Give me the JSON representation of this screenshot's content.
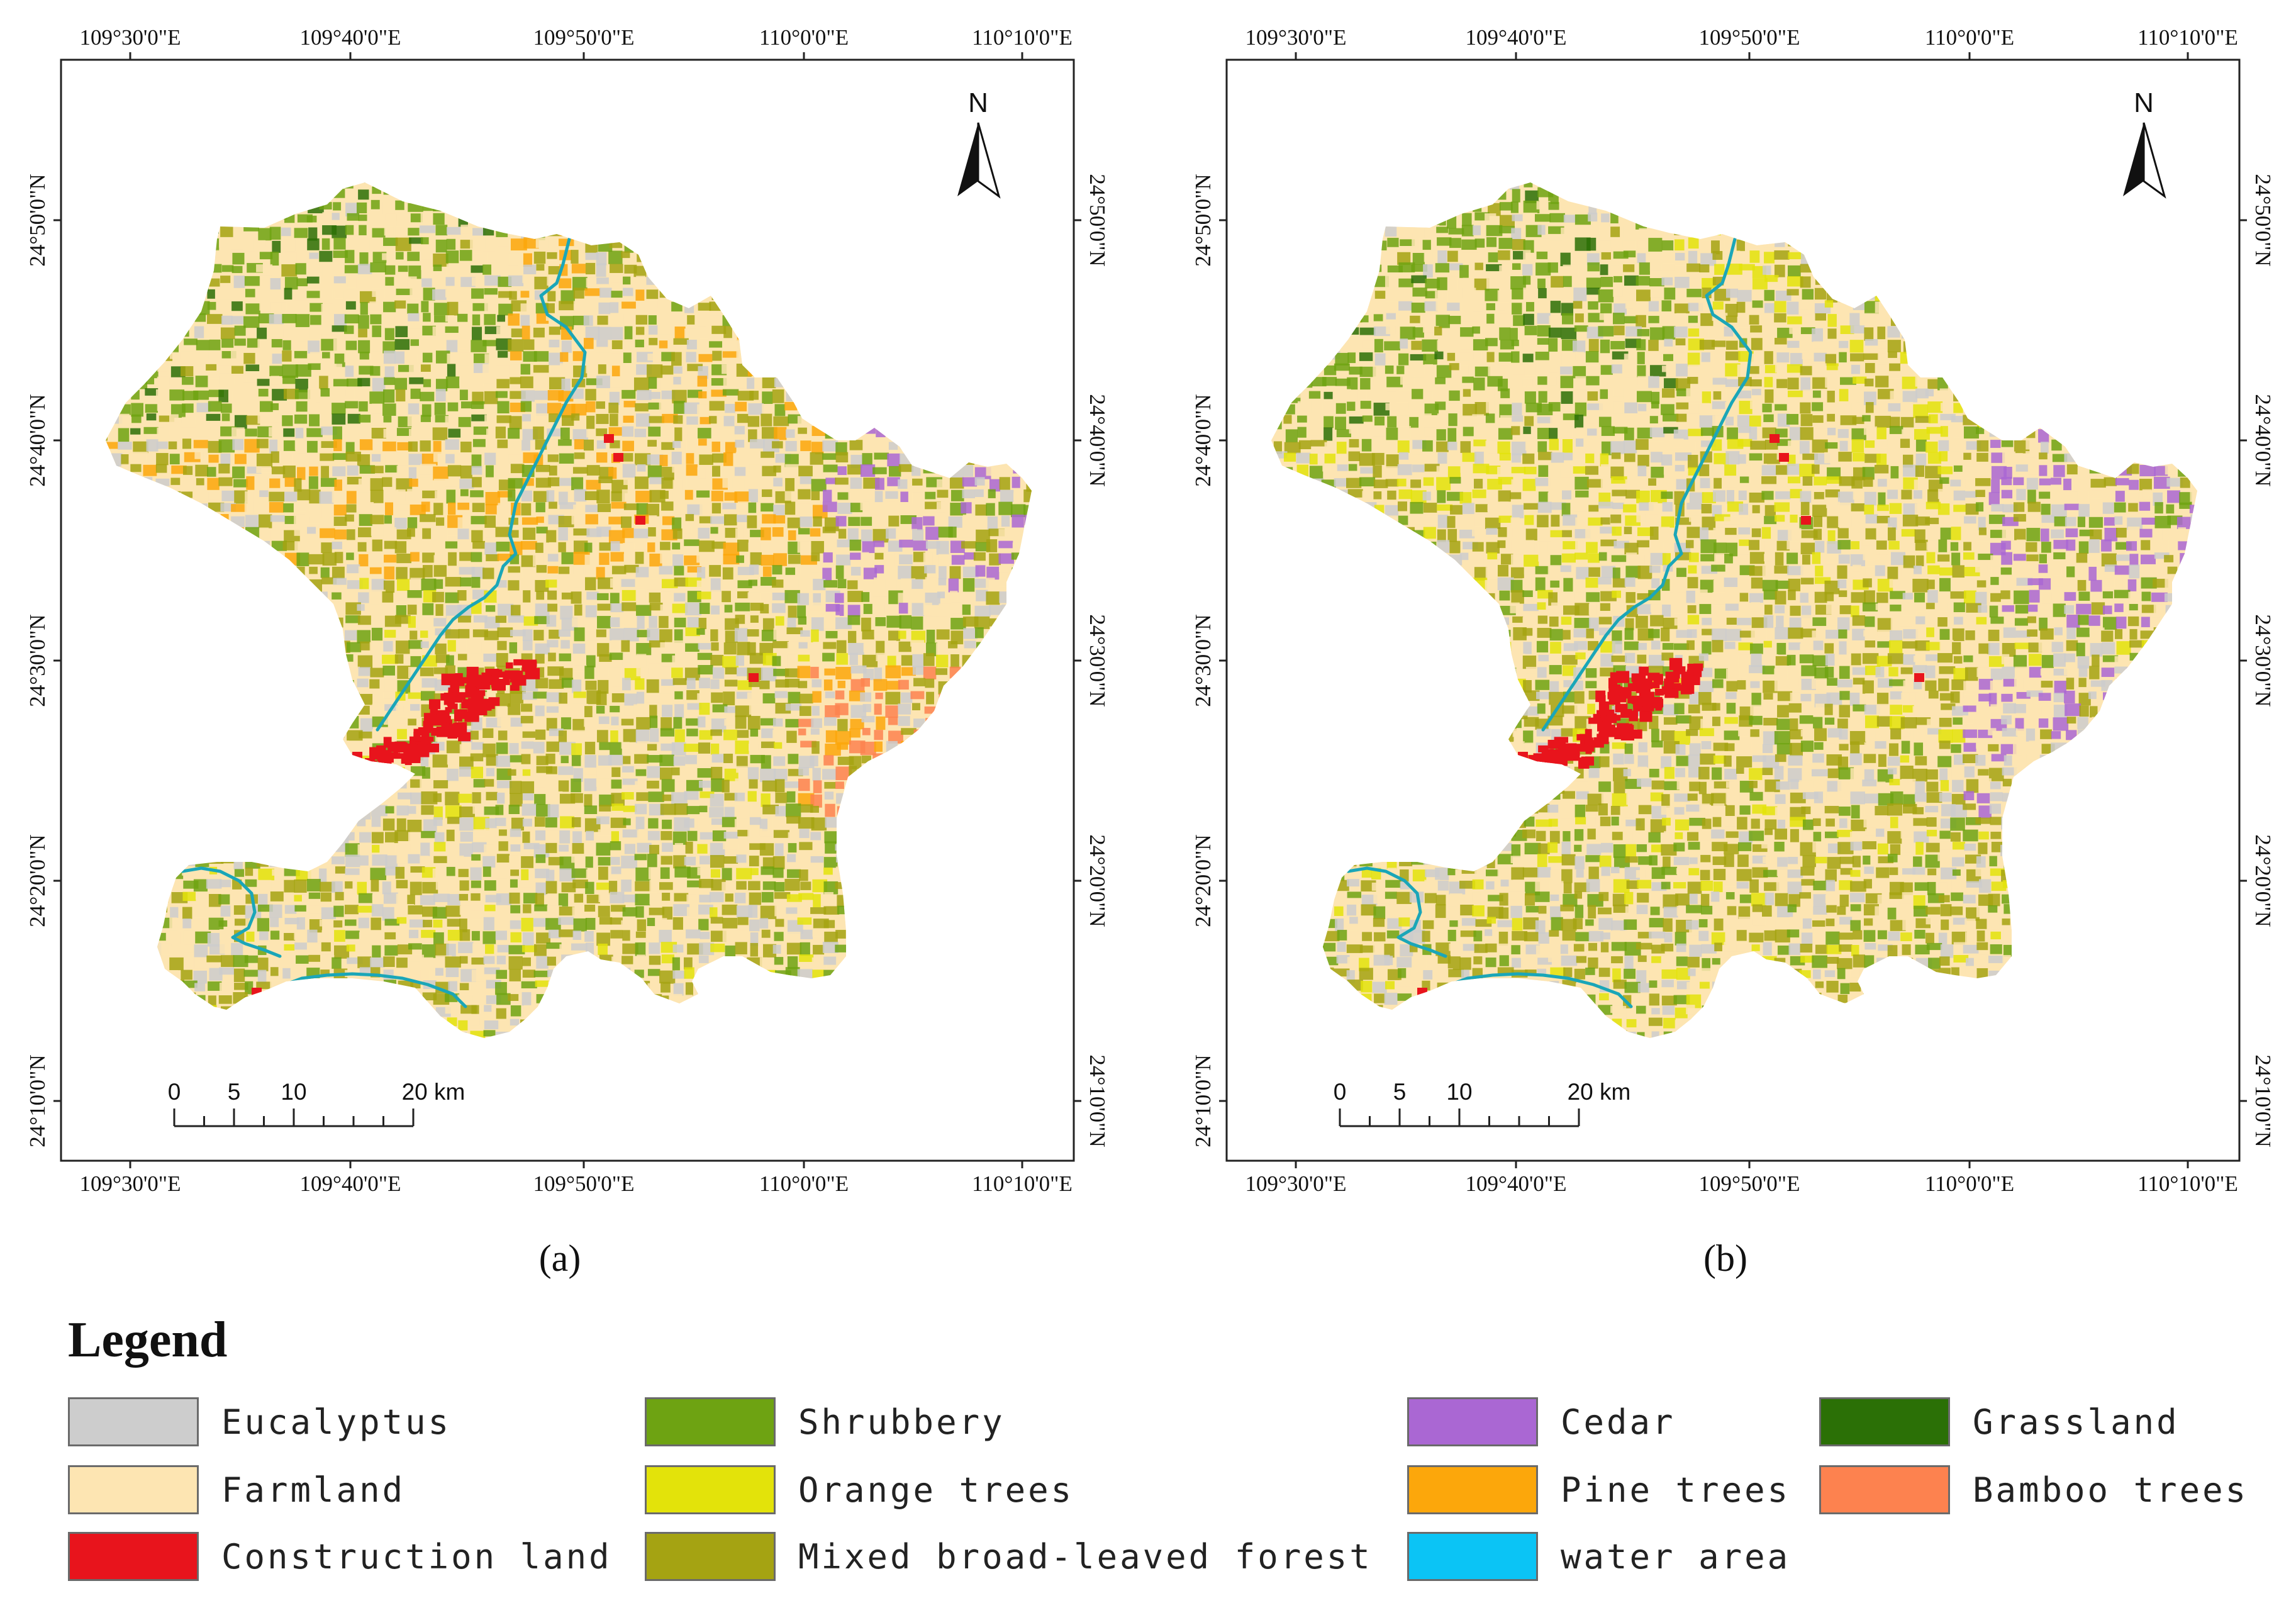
{
  "maps": [
    {
      "id": "a",
      "caption": "(a)",
      "lon_labels": [
        "109°30'0\"E",
        "109°40'0\"E",
        "109°50'0\"E",
        "110°0'0\"E",
        "110°10'0\"E"
      ],
      "lat_labels": [
        "24°50'0\"N",
        "24°40'0\"N",
        "24°30'0\"N",
        "24°20'0\"N",
        "24°10'0\"N"
      ],
      "north_label": "N",
      "scale_labels": [
        "0",
        "5",
        "10",
        "20 km"
      ]
    },
    {
      "id": "b",
      "caption": "(b)",
      "lon_labels": [
        "109°30'0\"E",
        "109°40'0\"E",
        "109°50'0\"E",
        "110°0'0\"E",
        "110°10'0\"E"
      ],
      "lat_labels": [
        "24°50'0\"N",
        "24°40'0\"N",
        "24°30'0\"N",
        "24°20'0\"N",
        "24°10'0\"N"
      ],
      "north_label": "N",
      "scale_labels": [
        "0",
        "5",
        "10",
        "20 km"
      ]
    }
  ],
  "legend": {
    "title": "Legend",
    "items": [
      {
        "label": "Eucalyptus",
        "color": "#cdcdcd"
      },
      {
        "label": "Farmland",
        "color": "#fde5b2"
      },
      {
        "label": "Construction land",
        "color": "#e8141c"
      },
      {
        "label": "Shrubbery",
        "color": "#6ea312"
      },
      {
        "label": "Orange trees",
        "color": "#e3e30a"
      },
      {
        "label": "Mixed broad-leaved forest",
        "color": "#a5a312"
      },
      {
        "label": "Cedar",
        "color": "#aa67d3"
      },
      {
        "label": "Pine trees",
        "color": "#fca70b"
      },
      {
        "label": "water area",
        "color": "#0bc4f5"
      },
      {
        "label": "Grassland",
        "color": "#2b7006"
      },
      {
        "label": "Bamboo trees",
        "color": "#fd824f"
      }
    ]
  }
}
